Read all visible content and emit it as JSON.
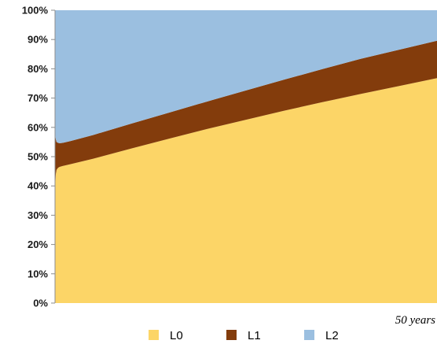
{
  "chart_data": {
    "type": "area",
    "stacked": true,
    "percent": true,
    "x_caption": "50 years",
    "xlim": [
      0,
      50
    ],
    "ylim": [
      0,
      100
    ],
    "y_ticks": [
      "0%",
      "10%",
      "20%",
      "30%",
      "40%",
      "50%",
      "60%",
      "70%",
      "80%",
      "90%",
      "100%"
    ],
    "x": [
      0,
      0.1,
      0.2,
      0.4,
      0.6,
      1,
      2,
      5,
      10,
      15,
      20,
      25,
      30,
      35,
      40,
      45,
      50
    ],
    "series": [
      {
        "name": "L0",
        "color": "#FCD567",
        "values": [
          39,
          44,
          45.5,
          46.2,
          46.5,
          46.8,
          47.4,
          49.3,
          52.8,
          56.2,
          59.5,
          62.6,
          65.7,
          68.6,
          71.4,
          74.1,
          76.8
        ]
      },
      {
        "name": "L1",
        "color": "#833C0C",
        "values": [
          19,
          12,
          9.5,
          8.5,
          8.1,
          7.9,
          7.9,
          8.1,
          8.5,
          8.9,
          9.4,
          10.0,
          10.6,
          11.3,
          12.0,
          12.4,
          12.8
        ]
      },
      {
        "name": "L2",
        "color": "#9BBFE0",
        "values": [
          42,
          44,
          45,
          45.3,
          45.4,
          45.3,
          44.7,
          42.6,
          38.7,
          34.9,
          31.1,
          27.4,
          23.7,
          20.1,
          16.6,
          13.5,
          10.4
        ]
      }
    ],
    "legend_position": "bottom",
    "grid": false
  }
}
